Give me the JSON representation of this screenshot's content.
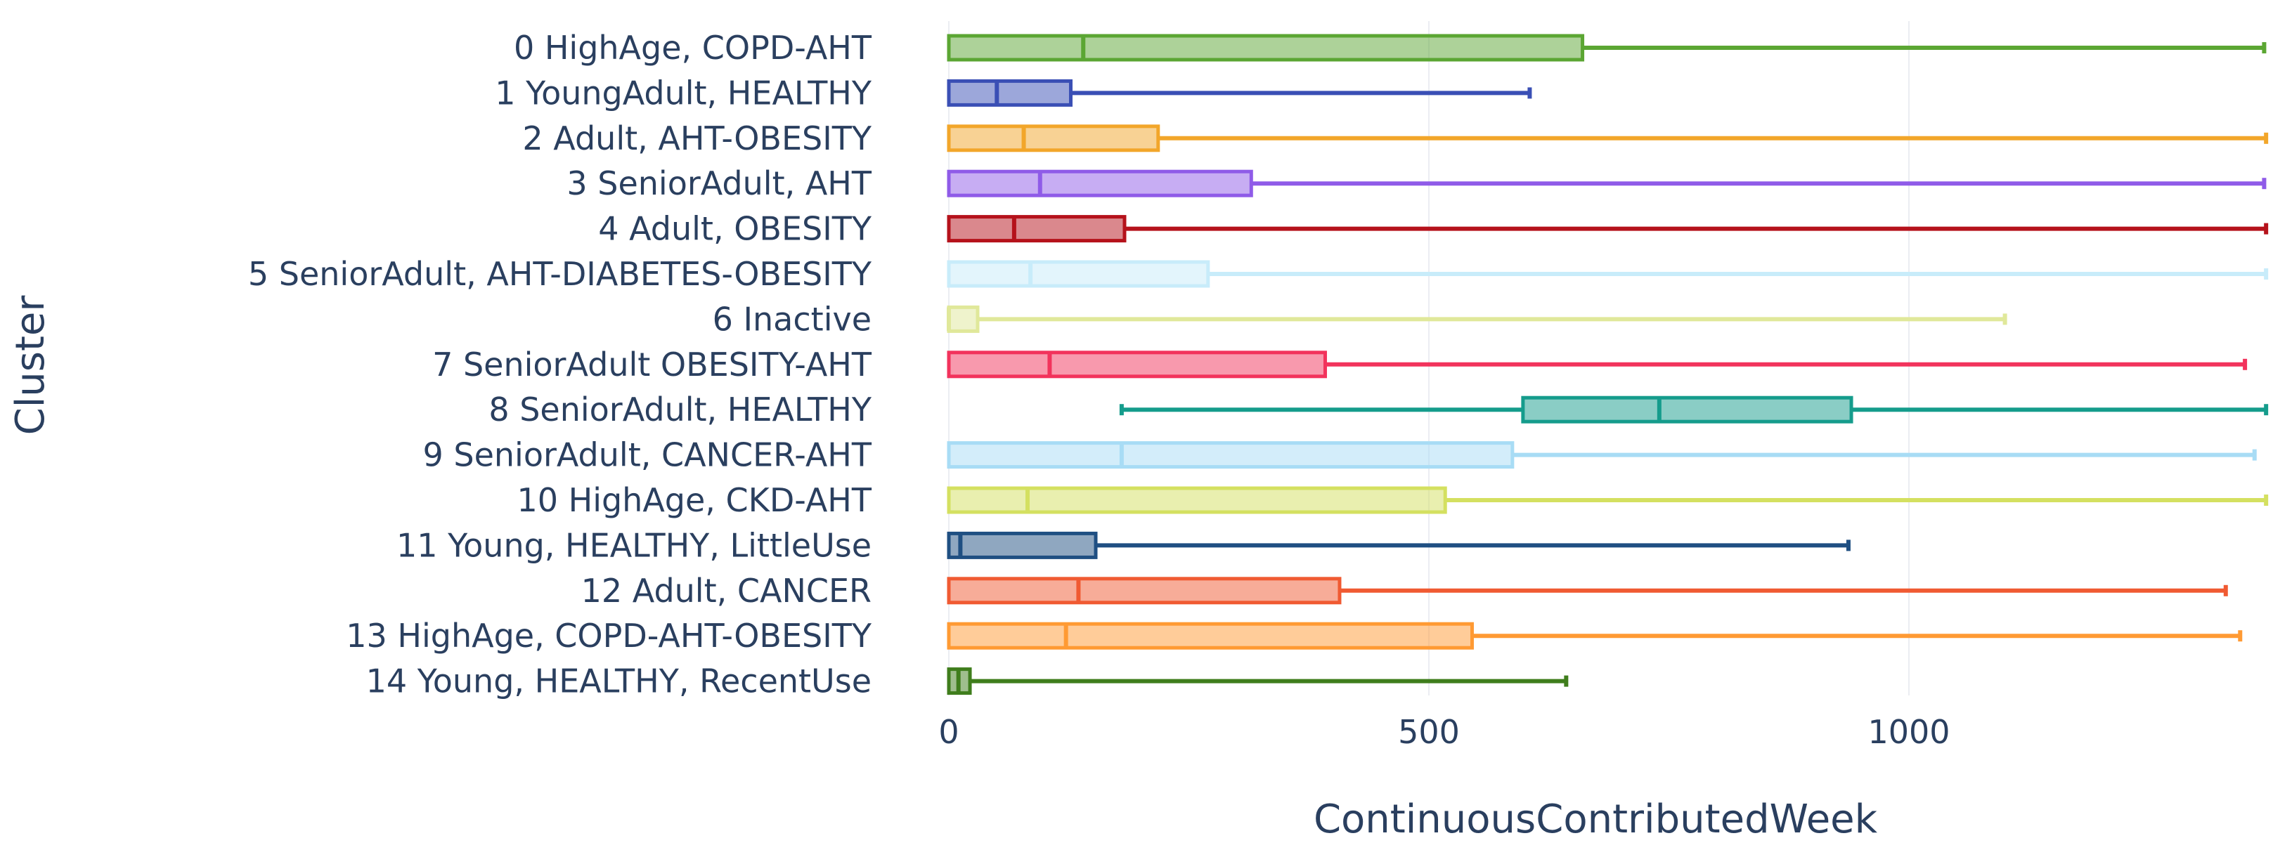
{
  "chart_data": {
    "type": "box",
    "orientation": "horizontal",
    "title": "",
    "xlabel": "ContinuousContributedWeek",
    "ylabel": "Cluster",
    "xlim": [
      0,
      1380
    ],
    "xticks": [
      0,
      500,
      1000
    ],
    "xtick_labels": [
      "0",
      "500",
      "1000"
    ],
    "categories": [
      "0 HighAge, COPD-AHT",
      "1 YoungAdult, HEALTHY",
      "2 Adult, AHT-OBESITY",
      "3 SeniorAdult, AHT",
      "4 Adult, OBESITY",
      "5 SeniorAdult, AHT-DIABETES-OBESITY",
      "6 Inactive",
      "7 SeniorAdult OBESITY-AHT",
      "8 SeniorAdult, HEALTHY",
      "9 SeniorAdult, CANCER-AHT",
      "10 HighAge, CKD-AHT",
      "11 Young, HEALTHY, LittleUse",
      "12 Adult, CANCER",
      "13 HighAge, COPD-AHT-OBESITY",
      "14 Young, HEALTHY, RecentUse"
    ],
    "series": [
      {
        "name": "0 HighAge, COPD-AHT",
        "color": "#5ba633",
        "min": 0,
        "q1": 0,
        "median": 140,
        "q3": 660,
        "max": 1370
      },
      {
        "name": "1 YoungAdult, HEALTHY",
        "color": "#3a4fb5",
        "min": 0,
        "q1": 0,
        "median": 50,
        "q3": 127,
        "max": 605
      },
      {
        "name": "2 Adult, AHT-OBESITY",
        "color": "#f2a62a",
        "min": 0,
        "q1": 0,
        "median": 78,
        "q3": 218,
        "max": 1372
      },
      {
        "name": "3 SeniorAdult, AHT",
        "color": "#8f5be8",
        "min": 0,
        "q1": 0,
        "median": 95,
        "q3": 315,
        "max": 1370
      },
      {
        "name": "4 Adult, OBESITY",
        "color": "#b5121b",
        "min": 0,
        "q1": 0,
        "median": 68,
        "q3": 183,
        "max": 1372
      },
      {
        "name": "5 SeniorAdult, AHT-DIABETES-OBESITY",
        "color": "#c8ecfa",
        "min": 0,
        "q1": 0,
        "median": 85,
        "q3": 270,
        "max": 1372
      },
      {
        "name": "6 Inactive",
        "color": "#e0e89a",
        "min": 0,
        "q1": 0,
        "median": 0,
        "q3": 30,
        "max": 1100
      },
      {
        "name": "7 SeniorAdult OBESITY-AHT",
        "color": "#f2335c",
        "min": 0,
        "q1": 0,
        "median": 105,
        "q3": 392,
        "max": 1350
      },
      {
        "name": "8 SeniorAdult, HEALTHY",
        "color": "#159c8c",
        "min": 180,
        "q1": 598,
        "median": 740,
        "q3": 940,
        "max": 1372
      },
      {
        "name": "9 SeniorAdult, CANCER-AHT",
        "color": "#a8dcf5",
        "min": 0,
        "q1": 0,
        "median": 180,
        "q3": 587,
        "max": 1360
      },
      {
        "name": "10 HighAge, CKD-AHT",
        "color": "#d4e060",
        "min": 0,
        "q1": 0,
        "median": 82,
        "q3": 517,
        "max": 1372
      },
      {
        "name": "11 Young, HEALTHY, LittleUse",
        "color": "#1f4f82",
        "min": 0,
        "q1": 0,
        "median": 12,
        "q3": 153,
        "max": 937
      },
      {
        "name": "12 Adult, CANCER",
        "color": "#f05a32",
        "min": 0,
        "q1": 0,
        "median": 135,
        "q3": 407,
        "max": 1330
      },
      {
        "name": "13 HighAge, COPD-AHT-OBESITY",
        "color": "#ff9a33",
        "min": 0,
        "q1": 0,
        "median": 122,
        "q3": 545,
        "max": 1345
      },
      {
        "name": "14 Young, HEALTHY, RecentUse",
        "color": "#3f7d1c",
        "min": 0,
        "q1": 0,
        "median": 10,
        "q3": 22,
        "max": 643
      }
    ],
    "grid": {
      "x": true,
      "y": false
    }
  }
}
